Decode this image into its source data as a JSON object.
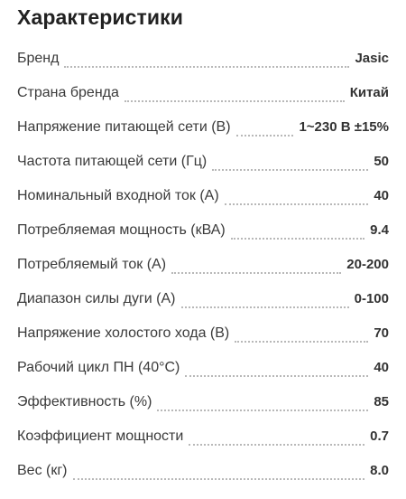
{
  "title": "Характеристики",
  "specs": [
    {
      "label": "Бренд",
      "value": "Jasic"
    },
    {
      "label": "Страна бренда",
      "value": "Китай"
    },
    {
      "label": "Напряжение питающей сети (В)",
      "value": "1~230 В ±15%"
    },
    {
      "label": "Частота питающей сети (Гц)",
      "value": "50"
    },
    {
      "label": "Номинальный входной ток (А)",
      "value": "40"
    },
    {
      "label": "Потребляемая мощность (кВА)",
      "value": "9.4"
    },
    {
      "label": "Потребляемый ток (А)",
      "value": "20-200"
    },
    {
      "label": "Диапазон силы дуги (А)",
      "value": "0-100"
    },
    {
      "label": "Напряжение холостого хода (В)",
      "value": "70"
    },
    {
      "label": "Рабочий цикл ПН (40°C)",
      "value": "40"
    },
    {
      "label": "Эффективность (%)",
      "value": "85"
    },
    {
      "label": "Коэффициент мощности",
      "value": "0.7"
    },
    {
      "label": "Вес (кг)",
      "value": "8.0"
    }
  ]
}
